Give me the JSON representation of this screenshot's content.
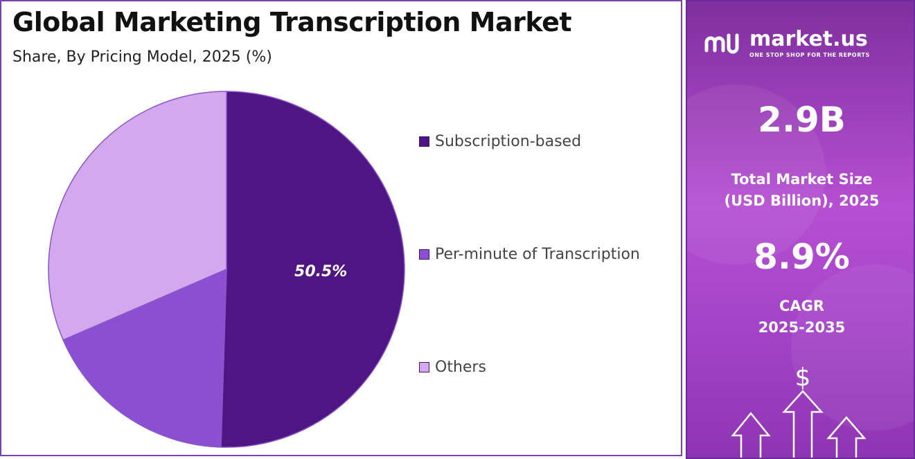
{
  "title": "Global Marketing Transcription Market",
  "subtitle": "Share, By Pricing Model, 2025 (%)",
  "chart_data": {
    "type": "pie",
    "title": "Global Marketing Transcription Market",
    "subtitle": "Share, By Pricing Model, 2025 (%)",
    "categories": [
      "Subscription-based",
      "Per-minute of Transcription",
      "Others"
    ],
    "values": [
      50.5,
      18.0,
      31.5
    ],
    "colors": [
      "#4f1582",
      "#8b4fd1",
      "#d3a8ec"
    ],
    "data_labels": [
      "50.5%",
      "",
      ""
    ],
    "legend_position": "right"
  },
  "brand": {
    "name": "market.us",
    "tagline": "ONE STOP SHOP FOR THE REPORTS"
  },
  "stats": {
    "market_size_value": "2.9B",
    "market_size_label_line1": "Total Market Size",
    "market_size_label_line2": "(USD Billion), 2025",
    "cagr_value": "8.9%",
    "cagr_label_line1": "CAGR",
    "cagr_label_line2": "2025-2035"
  },
  "icons": {
    "dollar": "$",
    "logo": "market-us-logo-icon",
    "arrows": "up-arrows-icon"
  },
  "colors": {
    "panel_accent": "#a544c8",
    "border": "#7a3fb0"
  }
}
